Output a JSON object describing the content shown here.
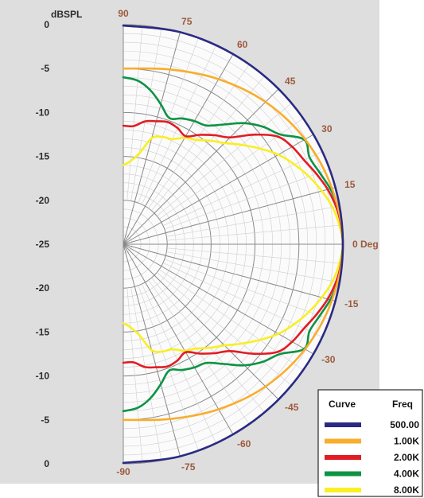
{
  "chart_data": {
    "type": "polar",
    "ylabel": "dBSPL",
    "radial_ticks": [
      "0",
      "-5",
      "-10",
      "-15",
      "-20",
      "-25",
      "-20",
      "-15",
      "-10",
      "-5",
      "0"
    ],
    "rlim": [
      -25,
      0
    ],
    "angle_labels": [
      "90",
      "75",
      "60",
      "45",
      "30",
      "15",
      "0 Deg",
      "-15",
      "-30",
      "-45",
      "-60",
      "-75",
      "-90"
    ],
    "angles": [
      90,
      75,
      60,
      45,
      30,
      15,
      0,
      -15,
      -30,
      -45,
      -60,
      -75,
      -90
    ],
    "legend": {
      "header_curve": "Curve",
      "header_freq": "Freq",
      "position": "bottom-right"
    },
    "series": [
      {
        "name": "500.00",
        "color": "#2b2a83",
        "angles": [
          -90,
          -75,
          -60,
          -45,
          -30,
          -15,
          0,
          15,
          30,
          45,
          60,
          75,
          90
        ],
        "values": [
          -0.1,
          0,
          0,
          0,
          0,
          0,
          0,
          0,
          0,
          0,
          0,
          0,
          -0.1
        ]
      },
      {
        "name": "1.00K",
        "color": "#f9ad2c",
        "angles": [
          -90,
          -75,
          -60,
          -45,
          -30,
          -15,
          0,
          15,
          30,
          45,
          60,
          75,
          90
        ],
        "values": [
          -5,
          -4.4,
          -3.3,
          -2.1,
          -1.1,
          -0.4,
          0,
          -0.4,
          -1.1,
          -2.1,
          -3.3,
          -4.4,
          -5
        ]
      },
      {
        "name": "2.00K",
        "color": "#e21c23",
        "angles": [
          -90,
          -85,
          -80,
          -75,
          -70,
          -65,
          -60,
          -55,
          -50,
          -45,
          -40,
          -35,
          -30,
          -25,
          -20,
          -15,
          -10,
          -5,
          0,
          5,
          10,
          15,
          20,
          25,
          30,
          35,
          40,
          45,
          50,
          55,
          60,
          65,
          70,
          75,
          80,
          85,
          90
        ],
        "values": [
          -11.5,
          -11.5,
          -10.8,
          -10.5,
          -10.2,
          -10.4,
          -10.8,
          -9.8,
          -8.8,
          -7.8,
          -5.6,
          -3.6,
          -2.8,
          -2.3,
          -1.6,
          -0.9,
          -0.4,
          -0.1,
          0,
          -0.1,
          -0.4,
          -0.9,
          -1.6,
          -2.3,
          -2.8,
          -3.6,
          -5.6,
          -7.8,
          -8.8,
          -9.8,
          -10.8,
          -10.4,
          -10.2,
          -10.5,
          -10.8,
          -11.5,
          -11.5
        ]
      },
      {
        "name": "4.00K",
        "color": "#0e9345",
        "angles": [
          -90,
          -85,
          -80,
          -75,
          -70,
          -65,
          -60,
          -55,
          -50,
          -45,
          -40,
          -35,
          -30,
          -25,
          -20,
          -15,
          -10,
          -5,
          0,
          5,
          10,
          15,
          20,
          25,
          30,
          35,
          40,
          45,
          50,
          55,
          60,
          65,
          70,
          75,
          80,
          85,
          90
        ],
        "values": [
          -6,
          -6.3,
          -7.2,
          -8.5,
          -9.7,
          -9.2,
          -8.8,
          -8.5,
          -7.2,
          -5.5,
          -4.2,
          -3.2,
          -1.2,
          -1.6,
          -1.2,
          -0.6,
          -0.2,
          -0.1,
          0,
          -0.1,
          -0.2,
          -0.6,
          -1.2,
          -1.6,
          -1.2,
          -3.2,
          -4.2,
          -5.5,
          -7.2,
          -8.5,
          -8.8,
          -9.2,
          -9.7,
          -8.5,
          -7.2,
          -6.3,
          -6
        ]
      },
      {
        "name": "8.00K",
        "color": "#f9ef22",
        "angles": [
          -90,
          -85,
          -80,
          -75,
          -70,
          -65,
          -60,
          -55,
          -50,
          -45,
          -40,
          -35,
          -30,
          -25,
          -20,
          -15,
          -10,
          -5,
          0,
          5,
          10,
          15,
          20,
          25,
          30,
          35,
          40,
          45,
          50,
          55,
          60,
          65,
          70,
          75,
          80,
          85,
          90
        ],
        "values": [
          -16,
          -15.5,
          -14.5,
          -12.5,
          -12,
          -11.8,
          -11,
          -10.5,
          -9.6,
          -8.7,
          -7.4,
          -6,
          -4.6,
          -3.5,
          -2.5,
          -1.6,
          -0.8,
          -0.3,
          0,
          -0.3,
          -0.8,
          -1.6,
          -2.5,
          -3.5,
          -4.6,
          -6,
          -7.4,
          -8.7,
          -9.6,
          -10.5,
          -11,
          -11.8,
          -12,
          -12.5,
          -14.5,
          -15.5,
          -16
        ]
      }
    ]
  }
}
